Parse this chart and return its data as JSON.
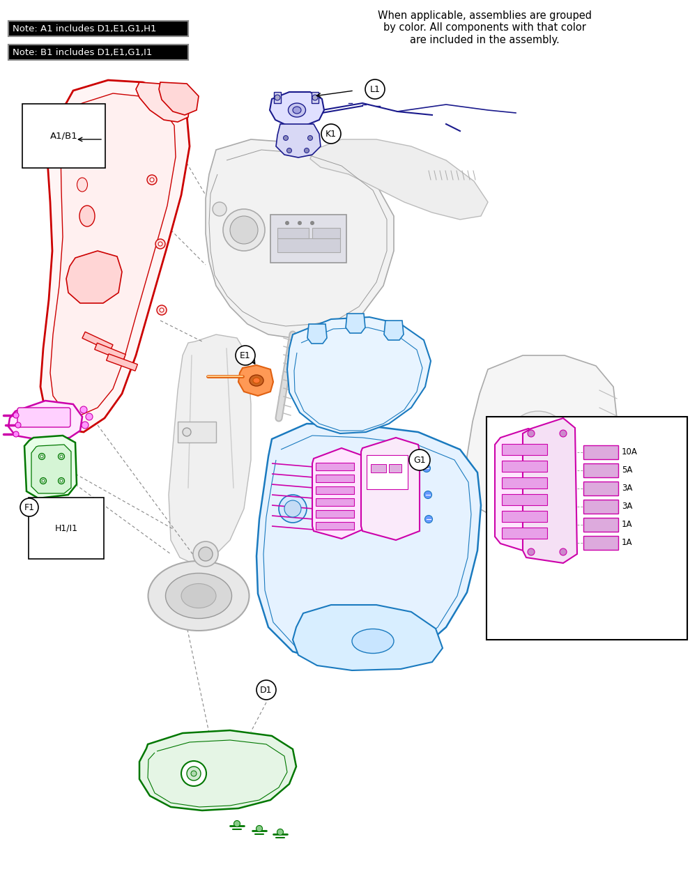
{
  "fig_width": 10.0,
  "fig_height": 12.47,
  "background_color": "#ffffff",
  "note1": "Note: A1 includes D1,E1,G1,H1",
  "note2": "Note: B1 includes D1,E1,G1,I1",
  "assembly_note": "When applicable, assemblies are grouped\nby color. All components with that color\nare included in the assembly.",
  "fuse_labels": [
    "10A",
    "5A",
    "3A",
    "3A",
    "1A",
    "1A"
  ],
  "colors": {
    "red": "#cc0000",
    "blue": "#1a7abf",
    "green": "#007700",
    "magenta": "#cc00aa",
    "orange": "#e06010",
    "purple": "#330099",
    "dark_blue": "#1a1a8c",
    "gray": "#888888",
    "light_gray": "#bbbbbb",
    "black": "#000000",
    "white": "#ffffff",
    "note_bg": "#000000",
    "note_fg": "#ffffff",
    "note_border": "#888888"
  },
  "label_A1B1": "A1/B1",
  "label_D1": "D1",
  "label_E1": "E1",
  "label_F1": "F1",
  "label_G1": "G1",
  "label_H1I1": "H1/I1",
  "label_K1": "K1",
  "label_L1": "L1"
}
